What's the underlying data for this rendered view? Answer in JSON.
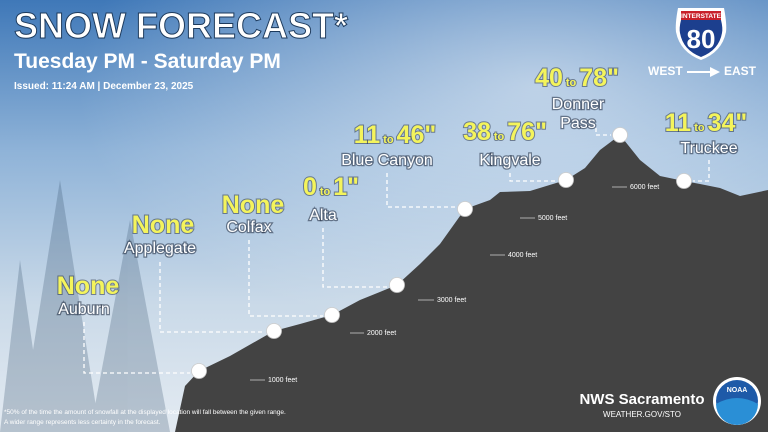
{
  "header": {
    "title": "SNOW FORECAST*",
    "subtitle": "Tuesday PM - Saturday PM",
    "issued": "Issued: 11:24 AM | December 23, 2025"
  },
  "sign": {
    "top": "INTERSTATE",
    "number": "80",
    "west": "WEST",
    "east": "EAST"
  },
  "locations": [
    {
      "name_lines": [
        "Auburn"
      ],
      "forecast": "None"
    },
    {
      "name_lines": [
        "Applegate"
      ],
      "forecast": "None"
    },
    {
      "name_lines": [
        "Colfax"
      ],
      "forecast": "None"
    },
    {
      "name_lines": [
        "Alta"
      ],
      "low": "0",
      "to": "to",
      "high": "1\""
    },
    {
      "name_lines": [
        "Blue Canyon"
      ],
      "low": "11",
      "to": "to",
      "high": "46\""
    },
    {
      "name_lines": [
        "Kingvale"
      ],
      "low": "38",
      "to": "to",
      "high": "76\""
    },
    {
      "name_lines": [
        "Donner",
        "Pass"
      ],
      "low": "40",
      "to": "to",
      "high": "78\""
    },
    {
      "name_lines": [
        "Truckee"
      ],
      "low": "11",
      "to": "to",
      "high": "34\""
    }
  ],
  "elevations": [
    "1000 feet",
    "2000 feet",
    "3000 feet",
    "4000 feet",
    "5000 feet",
    "6000 feet"
  ],
  "footer": {
    "note_lines": [
      "*50% of the time the amount of snowfall at the displayed location will fall between the given range.",
      "A wider range represents less certainty in the forecast."
    ],
    "office": "NWS Sacramento",
    "website": "WEATHER.GOV/STO",
    "logo": "NOAA"
  }
}
